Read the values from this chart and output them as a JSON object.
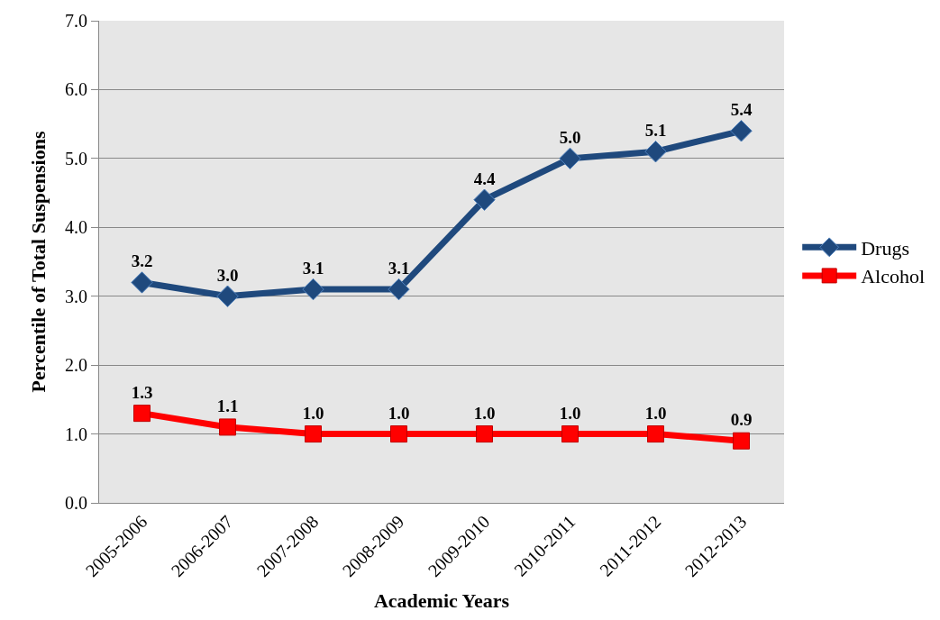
{
  "chart_data": {
    "type": "line",
    "xlabel": "Academic Years",
    "ylabel": "Percentile of Total Suspensions",
    "categories": [
      "2005-2006",
      "2006-2007",
      "2007-2008",
      "2008-2009",
      "2009-2010",
      "2010-2011",
      "2011-2012",
      "2012-2013"
    ],
    "series": [
      {
        "name": "Drugs",
        "color": "#1f497d",
        "marker": "diamond",
        "values": [
          3.2,
          3.0,
          3.1,
          3.1,
          4.4,
          5.0,
          5.1,
          5.4
        ],
        "value_labels": [
          "3.2",
          "3.0",
          "3.1",
          "3.1",
          "4.4",
          "5.0",
          "5.1",
          "5.4"
        ]
      },
      {
        "name": "Alcohol",
        "color": "#ff0000",
        "marker": "square",
        "values": [
          1.3,
          1.1,
          1.0,
          1.0,
          1.0,
          1.0,
          1.0,
          0.9
        ],
        "value_labels": [
          "1.3",
          "1.1",
          "1.0",
          "1.0",
          "1.0",
          "1.0",
          "1.0",
          "0.9"
        ]
      }
    ],
    "ylim": [
      0,
      7
    ],
    "yticks": [
      {
        "value": 0,
        "label": "0.0"
      },
      {
        "value": 1,
        "label": "1.0"
      },
      {
        "value": 2,
        "label": "2.0"
      },
      {
        "value": 3,
        "label": "3.0"
      },
      {
        "value": 4,
        "label": "4.0"
      },
      {
        "value": 5,
        "label": "5.0"
      },
      {
        "value": 6,
        "label": "6.0"
      },
      {
        "value": 7,
        "label": "7.0"
      }
    ],
    "grid": "y",
    "legend": "right",
    "line_style": "solid"
  }
}
